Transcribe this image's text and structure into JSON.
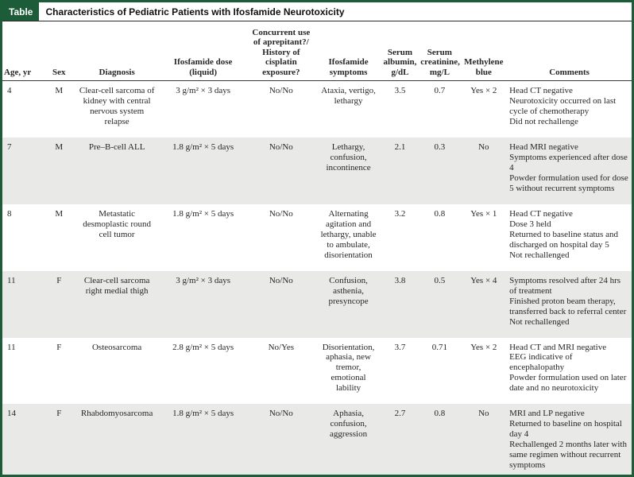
{
  "colors": {
    "accent_green": "#1d5c38",
    "row_shade": "#e9e9e7",
    "text": "#262626"
  },
  "table": {
    "label": "Table",
    "title": "Characteristics of Pediatric Patients with Ifosfamide Neurotoxicity",
    "columns": [
      {
        "key": "age",
        "label": "Age, yr",
        "header_align": "left",
        "body_align": "left"
      },
      {
        "key": "sex",
        "label": "Sex",
        "header_align": "center",
        "body_align": "center"
      },
      {
        "key": "diagnosis",
        "label": "Diagnosis",
        "header_align": "center",
        "body_align": "center"
      },
      {
        "key": "dose",
        "label": "Ifosfamide dose (liquid)",
        "header_align": "center",
        "body_align": "center"
      },
      {
        "key": "concurrent",
        "label": "Concurrent use of aprepitant?/ History of cisplatin exposure?",
        "header_align": "center",
        "body_align": "center"
      },
      {
        "key": "symptoms",
        "label": "Ifosfamide symptoms",
        "header_align": "center",
        "body_align": "center"
      },
      {
        "key": "albumin",
        "label": "Serum albumin, g/dL",
        "header_align": "center",
        "body_align": "center"
      },
      {
        "key": "creatinine",
        "label": "Serum creatinine, mg/L",
        "header_align": "center",
        "body_align": "center"
      },
      {
        "key": "methylene",
        "label": "Methylene blue",
        "header_align": "center",
        "body_align": "center"
      },
      {
        "key": "comments",
        "label": "Comments",
        "header_align": "center",
        "body_align": "left"
      }
    ],
    "rows": [
      {
        "age": "4",
        "sex": "M",
        "diagnosis": "Clear-cell sarcoma of kidney with central nervous system relapse",
        "dose": "3 g/m² × 3 days",
        "concurrent": "No/No",
        "symptoms": "Ataxia, vertigo, lethargy",
        "albumin": "3.5",
        "creatinine": "0.7",
        "methylene": "Yes × 2",
        "comments": [
          "Head CT negative",
          "Neurotoxicity occurred on last cycle of chemotherapy",
          "Did not rechallenge"
        ]
      },
      {
        "age": "7",
        "sex": "M",
        "diagnosis": "Pre–B-cell ALL",
        "dose": "1.8 g/m² × 5 days",
        "concurrent": "No/No",
        "symptoms": "Lethargy, confusion, incontinence",
        "albumin": "2.1",
        "creatinine": "0.3",
        "methylene": "No",
        "comments": [
          "Head MRI negative",
          "Symptoms experienced after dose 4",
          "Powder formulation used for dose 5 without recurrent symptoms"
        ]
      },
      {
        "age": "8",
        "sex": "M",
        "diagnosis": "Metastatic desmoplastic round cell tumor",
        "dose": "1.8 g/m² × 5 days",
        "concurrent": "No/No",
        "symptoms": "Alternating agitation and lethargy, unable to ambulate, disorientation",
        "albumin": "3.2",
        "creatinine": "0.8",
        "methylene": "Yes × 1",
        "comments": [
          "Head CT negative",
          "Dose 3 held",
          "Returned to baseline status and discharged on hospital day 5",
          "Not rechallenged"
        ]
      },
      {
        "age": "11",
        "sex": "F",
        "diagnosis": "Clear-cell sarcoma right medial thigh",
        "dose": "3 g/m² × 3 days",
        "concurrent": "No/No",
        "symptoms": "Confusion, asthenia, presyncope",
        "albumin": "3.8",
        "creatinine": "0.5",
        "methylene": "Yes × 4",
        "comments": [
          "Symptoms resolved after 24 hrs of treatment",
          "Finished proton beam therapy, transferred back to referral center",
          "Not rechallenged"
        ]
      },
      {
        "age": "11",
        "sex": "F",
        "diagnosis": "Osteosarcoma",
        "dose": "2.8 g/m² × 5 days",
        "concurrent": "No/Yes",
        "symptoms": "Disorientation, aphasia, new tremor, emotional lability",
        "albumin": "3.7",
        "creatinine": "0.71",
        "methylene": "Yes × 2",
        "comments": [
          "Head CT and MRI negative",
          "EEG indicative of encephalopathy",
          "Powder formulation used on later date and no neurotoxicity"
        ]
      },
      {
        "age": "14",
        "sex": "F",
        "diagnosis": "Rhabdomyosarcoma",
        "dose": "1.8 g/m² × 5 days",
        "concurrent": "No/No",
        "symptoms": "Aphasia, confusion, aggression",
        "albumin": "2.7",
        "creatinine": "0.8",
        "methylene": "No",
        "comments": [
          "MRI and LP negative",
          "Returned to baseline on hospital day 4",
          "Rechallenged 2 months later with same regimen without recurrent symptoms"
        ]
      }
    ]
  }
}
